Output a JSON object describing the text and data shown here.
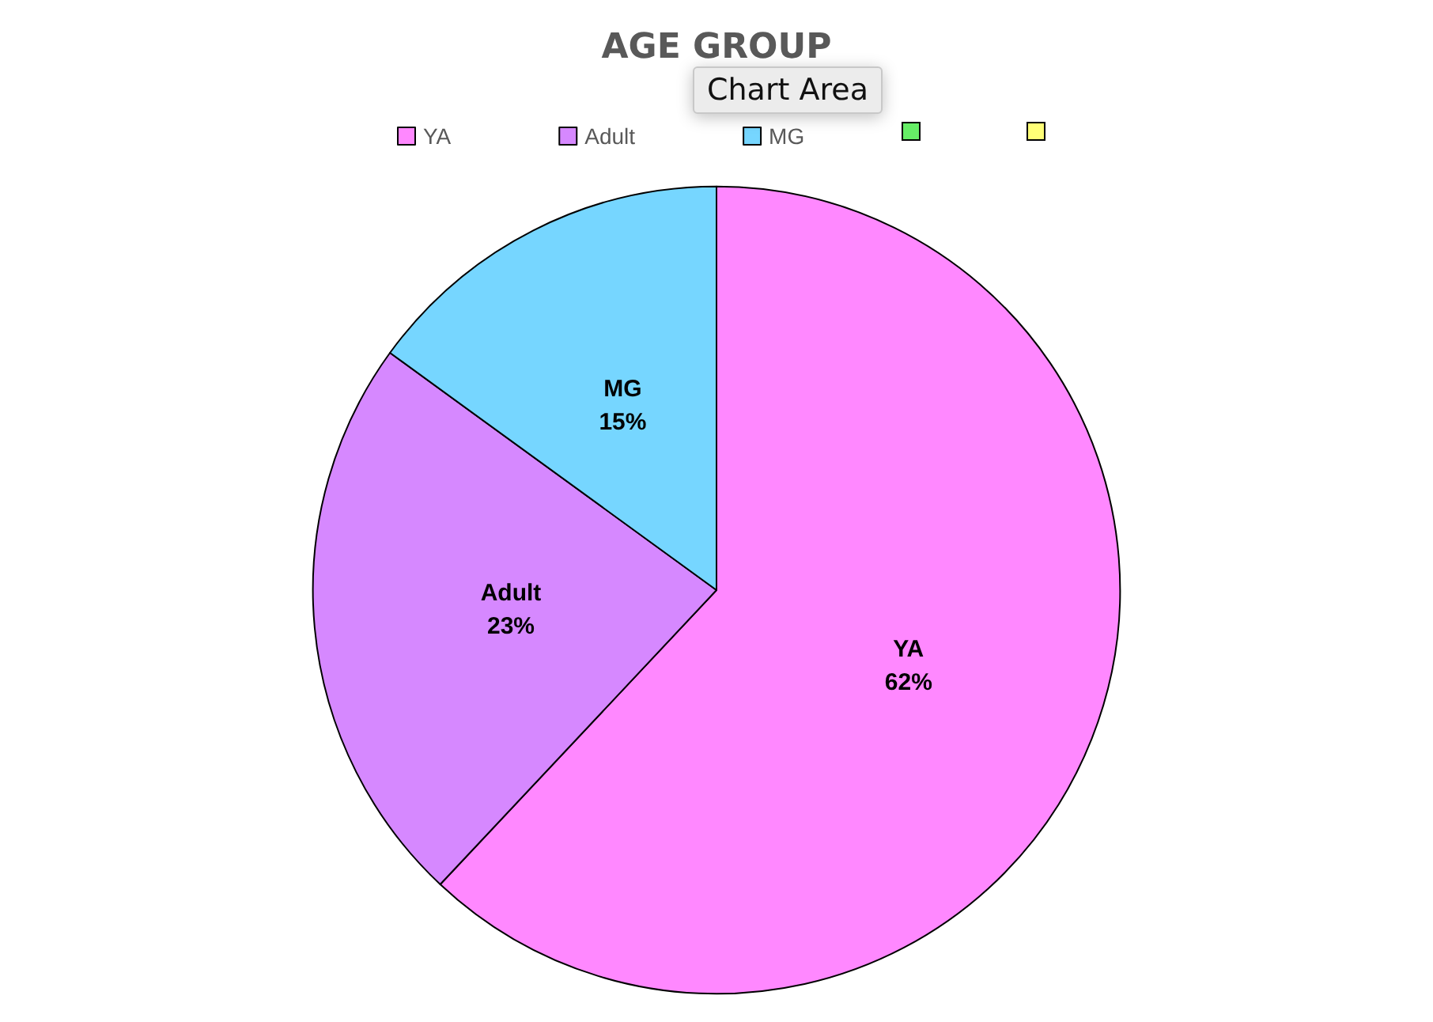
{
  "chart_data": {
    "type": "pie",
    "title": "AGE GROUP",
    "categories": [
      "YA",
      "Adult",
      "MG",
      null,
      null
    ],
    "values": [
      62,
      23,
      15,
      null,
      null
    ],
    "value_labels": [
      "62%",
      "23%",
      "15%",
      null,
      null
    ],
    "colors": [
      "#ff88ff",
      "#d688ff",
      "#76d6ff",
      "#66ee66",
      "#ffff77"
    ],
    "legend": "top",
    "annotations": [
      "Chart Area"
    ]
  }
}
